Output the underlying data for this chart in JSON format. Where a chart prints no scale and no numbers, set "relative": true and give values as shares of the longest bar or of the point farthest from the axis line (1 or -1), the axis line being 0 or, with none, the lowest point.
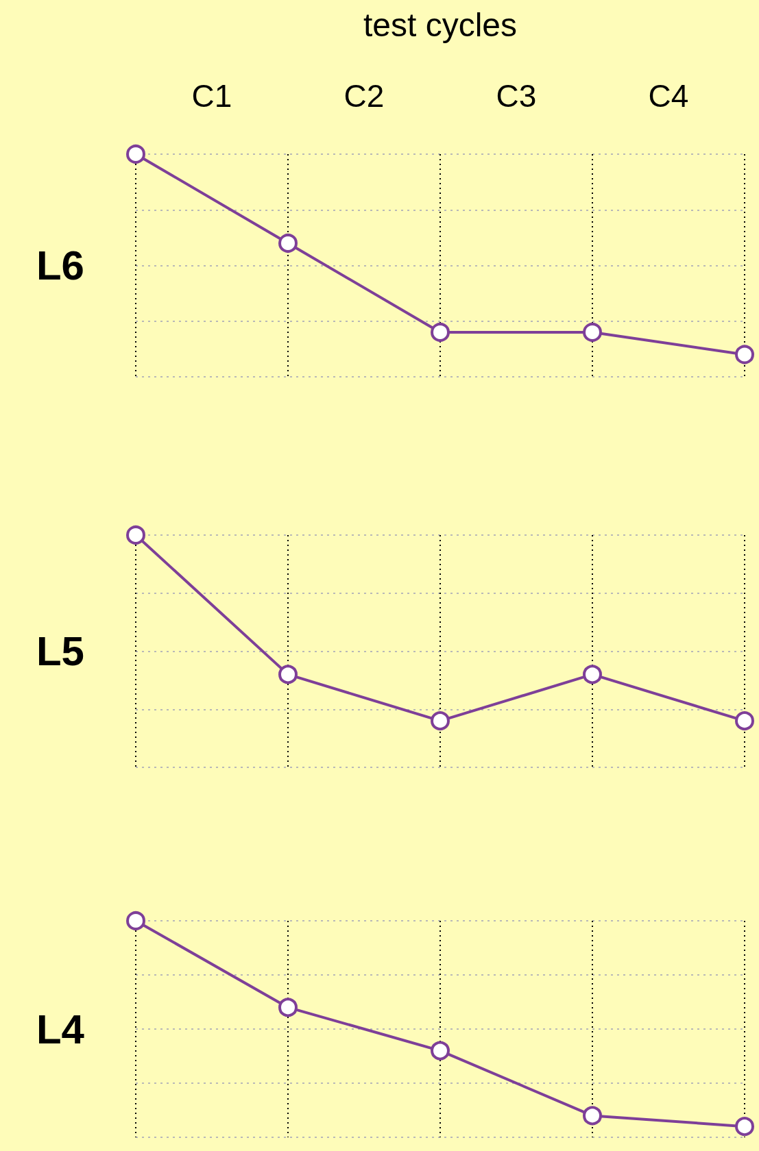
{
  "chart_data": [
    {
      "type": "line",
      "xlabel": "test cycles",
      "ylabel": "L6",
      "categories": [
        null,
        null,
        null,
        null,
        null
      ],
      "annotations": [
        "C1",
        "C2",
        "C3",
        "C4"
      ],
      "relative": true,
      "grid": true,
      "marker": "circle",
      "line_style": "solid",
      "series": [
        {
          "color": "#7e3f98",
          "values": [
            1,
            0.6,
            0.2,
            0.2,
            0.1
          ]
        }
      ]
    },
    {
      "type": "line",
      "ylabel": "L5",
      "categories": [
        null,
        null,
        null,
        null,
        null
      ],
      "relative": true,
      "grid": true,
      "marker": "circle",
      "line_style": "solid",
      "series": [
        {
          "color": "#7e3f98",
          "values": [
            1,
            0.4,
            0.2,
            0.4,
            0.2
          ]
        }
      ]
    },
    {
      "type": "line",
      "ylabel": "L4",
      "categories": [
        null,
        null,
        null,
        null,
        null
      ],
      "relative": true,
      "grid": true,
      "marker": "circle",
      "line_style": "solid",
      "series": [
        {
          "color": "#7e3f98",
          "values": [
            1,
            0.6,
            0.4,
            0.1,
            0.05
          ]
        }
      ]
    }
  ]
}
